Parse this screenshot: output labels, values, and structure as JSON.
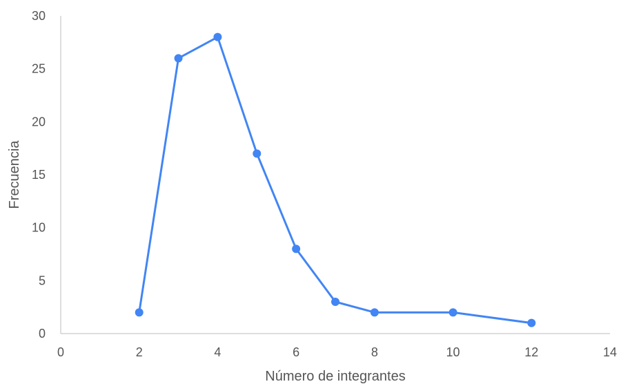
{
  "chart_data": {
    "type": "scatter",
    "title": "",
    "xlabel": "Número de integrantes",
    "ylabel": "Frecuencia",
    "xlim": [
      0,
      14
    ],
    "ylim": [
      0,
      30
    ],
    "xticks": [
      0,
      2,
      4,
      6,
      8,
      10,
      12,
      14
    ],
    "yticks": [
      0,
      5,
      10,
      15,
      20,
      25,
      30
    ],
    "grid": false,
    "legend": "none",
    "series": [
      {
        "color": "#4285f4",
        "points": [
          {
            "x": 2,
            "y": 2
          },
          {
            "x": 3,
            "y": 26
          },
          {
            "x": 4,
            "y": 28
          },
          {
            "x": 5,
            "y": 17
          },
          {
            "x": 6,
            "y": 8
          },
          {
            "x": 7,
            "y": 3
          },
          {
            "x": 8,
            "y": 2
          },
          {
            "x": 10,
            "y": 2
          },
          {
            "x": 12,
            "y": 1
          }
        ]
      }
    ]
  }
}
